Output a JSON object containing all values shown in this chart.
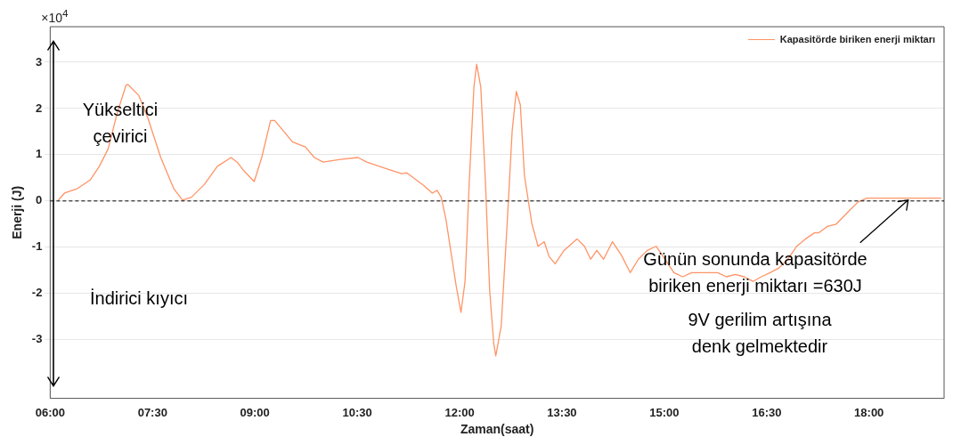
{
  "chart_data": {
    "type": "line",
    "xlabel": "Zaman(saat)",
    "ylabel": "Enerji (J)",
    "annotations": [
      "×10$^{4}$",
      "Yükseltici çevirici",
      "İndirici kıyıcı",
      {
        "text": "Günün sonunda kapasitörde biriken enerji miktarı   =630J",
        "x": 18.6,
        "y": 0.06
      },
      "9V gerilim artışına denk gelmektedir"
    ],
    "xlim": [
      6,
      19.1
    ],
    "xticks": [
      {
        "value": 6,
        "label": "06:00"
      },
      {
        "value": 7.5,
        "label": "07:30"
      },
      {
        "value": 9,
        "label": "09:00"
      },
      {
        "value": 10.5,
        "label": "10:30"
      },
      {
        "value": 12,
        "label": "12:00"
      },
      {
        "value": 13.5,
        "label": "13:30"
      },
      {
        "value": 15,
        "label": "15:00"
      },
      {
        "value": 16.5,
        "label": "16:30"
      },
      {
        "value": 18,
        "label": "18:00"
      }
    ],
    "ylim": [
      -4.27,
      3.77
    ],
    "yticks": [
      -3,
      -2,
      -1,
      0,
      1,
      2,
      3
    ],
    "grid": "y",
    "legend": "top right",
    "marker": "none",
    "line_style": "solid",
    "ref_lines": [
      {
        "axis": "y",
        "value": 0,
        "color": "#000000",
        "line_style": "dashed"
      }
    ],
    "x": [
      6.12,
      6.21,
      6.4,
      6.59,
      6.72,
      6.85,
      6.98,
      7.11,
      7.14,
      7.3,
      7.43,
      7.62,
      7.81,
      7.94,
      8.07,
      8.26,
      8.45,
      8.65,
      8.74,
      8.84,
      8.99,
      9.1,
      9.23,
      9.29,
      9.42,
      9.55,
      9.74,
      9.87,
      10,
      10.25,
      10.51,
      10.64,
      10.9,
      11.15,
      11.22,
      11.28,
      11.48,
      11.6,
      11.67,
      11.73,
      11.8,
      11.86,
      11.95,
      12.02,
      12.08,
      12.14,
      12.21,
      12.25,
      12.31,
      12.38,
      12.44,
      12.5,
      12.53,
      12.61,
      12.7,
      12.77,
      12.83,
      12.89,
      12.95,
      13.06,
      13.15,
      13.24,
      13.31,
      13.4,
      13.53,
      13.72,
      13.83,
      13.92,
      14.01,
      14.11,
      14.24,
      14.37,
      14.5,
      14.62,
      14.75,
      14.88,
      15.01,
      15.14,
      15.27,
      15.4,
      15.52,
      15.65,
      15.78,
      15.91,
      16.04,
      16.17,
      16.3,
      16.42,
      16.55,
      16.68,
      16.81,
      16.94,
      17.07,
      17.2,
      17.26,
      17.39,
      17.52,
      17.71,
      17.84,
      17.97,
      19.06
    ],
    "series": [
      {
        "name": "Kapasitörde biriken enerji miktarı",
        "color": "#ff9466",
        "values": [
          0.02,
          0.17,
          0.27,
          0.46,
          0.75,
          1.13,
          1.89,
          2.5,
          2.52,
          2.28,
          1.8,
          0.94,
          0.27,
          0.02,
          0.08,
          0.36,
          0.75,
          0.94,
          0.84,
          0.65,
          0.42,
          0.94,
          1.74,
          1.74,
          1.51,
          1.28,
          1.17,
          0.94,
          0.84,
          0.9,
          0.94,
          0.84,
          0.71,
          0.59,
          0.61,
          0.55,
          0.33,
          0.17,
          0.23,
          0.08,
          -0.4,
          -0.98,
          -1.84,
          -2.41,
          -1.74,
          0.36,
          2.47,
          2.96,
          2.47,
          0.36,
          -1.93,
          -3.08,
          -3.35,
          -2.7,
          -0.4,
          1.51,
          2.37,
          2.08,
          0.55,
          -0.5,
          -0.98,
          -0.88,
          -1.2,
          -1.36,
          -1.07,
          -0.82,
          -0.98,
          -1.26,
          -1.07,
          -1.26,
          -0.88,
          -1.17,
          -1.55,
          -1.26,
          -1.07,
          -0.98,
          -1.26,
          -1.55,
          -1.64,
          -1.55,
          -1.55,
          -1.55,
          -1.55,
          -1.64,
          -1.59,
          -1.64,
          -1.74,
          -1.64,
          -1.55,
          -1.45,
          -1.26,
          -0.98,
          -0.82,
          -0.69,
          -0.69,
          -0.55,
          -0.5,
          -0.21,
          -0.02,
          0.06,
          0.06
        ]
      }
    ]
  }
}
